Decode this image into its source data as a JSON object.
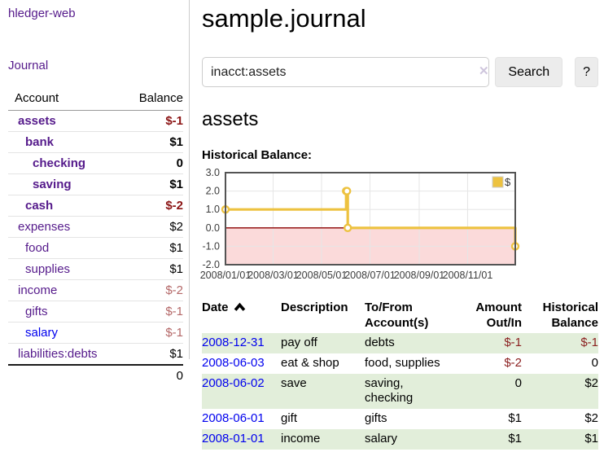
{
  "sidebar": {
    "brand": "hledger-web",
    "nav": {
      "journal": "Journal"
    },
    "accounts_table": {
      "headers": {
        "account": "Account",
        "balance": "Balance"
      },
      "rows": [
        {
          "account": "assets",
          "indent": 0,
          "balance": "$-1",
          "emphasis": true,
          "balance_color": "strong-negative",
          "link": "visited"
        },
        {
          "account": "bank",
          "indent": 1,
          "balance": "$1",
          "emphasis": true,
          "balance_color": "default",
          "link": "visited"
        },
        {
          "account": "checking",
          "indent": 2,
          "balance": "0",
          "emphasis": true,
          "balance_color": "default",
          "link": "visited"
        },
        {
          "account": "saving",
          "indent": 2,
          "balance": "$1",
          "emphasis": true,
          "balance_color": "default",
          "link": "visited"
        },
        {
          "account": "cash",
          "indent": 1,
          "balance": "$-2",
          "emphasis": true,
          "balance_color": "strong-negative",
          "link": "visited"
        },
        {
          "account": "expenses",
          "indent": 0,
          "balance": "$2",
          "emphasis": false,
          "balance_color": "default",
          "link": "visited"
        },
        {
          "account": "food",
          "indent": 1,
          "balance": "$1",
          "emphasis": false,
          "balance_color": "default",
          "link": "visited"
        },
        {
          "account": "supplies",
          "indent": 1,
          "balance": "$1",
          "emphasis": false,
          "balance_color": "default",
          "link": "visited"
        },
        {
          "account": "income",
          "indent": 0,
          "balance": "$-2",
          "emphasis": false,
          "balance_color": "soft-negative",
          "link": "visited"
        },
        {
          "account": "gifts",
          "indent": 1,
          "balance": "$-1",
          "emphasis": false,
          "balance_color": "soft-negative",
          "link": "visited"
        },
        {
          "account": "salary",
          "indent": 1,
          "balance": "$-1",
          "emphasis": false,
          "balance_color": "soft-negative",
          "link": "unvisited"
        },
        {
          "account": "liabilities:debts",
          "indent": 0,
          "balance": "$1",
          "emphasis": false,
          "balance_color": "default",
          "link": "visited"
        }
      ],
      "total": "0"
    }
  },
  "main": {
    "title": "sample.journal",
    "search": {
      "query": "inacct:assets",
      "clear_icon": "✕",
      "search_button": "Search",
      "help_button": "?"
    },
    "account_heading": "assets",
    "chart_label": "Historical Balance:"
  },
  "chart_data": {
    "type": "line",
    "step": true,
    "title": "Historical Balance",
    "series": [
      {
        "name": "$",
        "color": "#edc240",
        "points": [
          [
            "2008-01-01",
            1
          ],
          [
            "2008-06-01",
            2
          ],
          [
            "2008-06-02",
            2
          ],
          [
            "2008-06-03",
            0
          ],
          [
            "2008-12-31",
            -1
          ]
        ]
      }
    ],
    "x_range": [
      "2008-01-01",
      "2008-12-31"
    ],
    "ylim": [
      -2,
      3
    ],
    "y_ticks": [
      3,
      2,
      1,
      0,
      -1,
      -2
    ],
    "x_ticks": [
      "2008/01/01",
      "2008/03/01",
      "2008/05/01",
      "2008/07/01",
      "2008/09/01",
      "2008/11/01"
    ],
    "legend_position": "top-right",
    "grid": true,
    "negative_region_color": "#fbdada",
    "zero_line_color": "#8b0000"
  },
  "register": {
    "header_cells": [
      {
        "lines": [
          "Date"
        ],
        "sort": "asc",
        "align": "left"
      },
      {
        "lines": [
          "Description"
        ],
        "align": "left"
      },
      {
        "lines": [
          "To/From",
          "Account(s)"
        ],
        "align": "left"
      },
      {
        "lines": [
          "Amount",
          "Out/In"
        ],
        "align": "right"
      },
      {
        "lines": [
          "Historical",
          "Balance"
        ],
        "align": "right"
      }
    ],
    "rows": [
      {
        "date": "2008-12-31",
        "description": "pay off",
        "accounts": [
          "debts"
        ],
        "amount": "$-1",
        "amount_negative": true,
        "balance": "$-1",
        "balance_negative": true
      },
      {
        "date": "2008-06-03",
        "description": "eat & shop",
        "accounts": [
          "food, supplies"
        ],
        "amount": "$-2",
        "amount_negative": true,
        "balance": "0",
        "balance_negative": false
      },
      {
        "date": "2008-06-02",
        "description": "save",
        "accounts": [
          "saving,",
          "checking"
        ],
        "amount": "0",
        "amount_negative": false,
        "balance": "$2",
        "balance_negative": false
      },
      {
        "date": "2008-06-01",
        "description": "gift",
        "accounts": [
          "gifts"
        ],
        "amount": "$1",
        "amount_negative": false,
        "balance": "$2",
        "balance_negative": false
      },
      {
        "date": "2008-01-01",
        "description": "income",
        "accounts": [
          "salary"
        ],
        "amount": "$1",
        "amount_negative": false,
        "balance": "$1",
        "balance_negative": false
      }
    ]
  },
  "colors": {
    "link_visited": "#551a8b",
    "link_unvisited": "#0000ee",
    "negative_strong": "#8b1414",
    "negative_soft": "#b46868",
    "register_negative": "#8b2020",
    "row_stripe_green": "#e2eeda",
    "series_gold": "#edc240"
  }
}
